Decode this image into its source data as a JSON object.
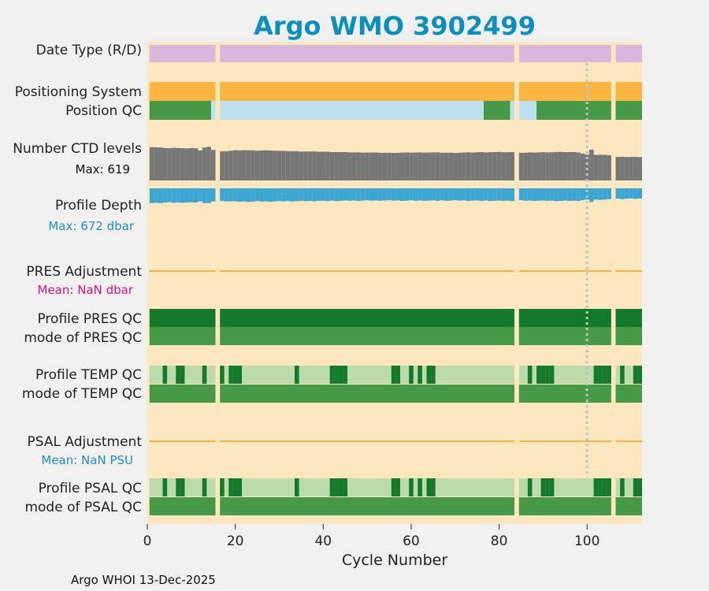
{
  "colors": {
    "figure_bg": "#f0f0f0",
    "axes_bg": "#fde7be",
    "title": "#0a8fbf",
    "date_type": "#d8b8dc",
    "positioning": "#fbb540",
    "pos_qc_good": "#469a46",
    "pos_qc_interp": "#bfe0ef",
    "ctd": "#777777",
    "depth": "#3aa6d4",
    "adjustment_line": "#f6b442",
    "qc_dark": "#137a2c",
    "qc_mid": "#469a46",
    "qc_light": "#bddbaa",
    "max_depth_text": "#1f90c0",
    "pres_mean_text": "#e0127f",
    "psal_mean_text": "#1f90c0",
    "vline": "#b8c4cc"
  },
  "chart_data": {
    "type": "timeline",
    "title": "Argo WMO 3902499",
    "xlabel": "Cycle Number",
    "xlim": [
      0,
      112.5
    ],
    "xticks": [
      0,
      20,
      40,
      60,
      80,
      100
    ],
    "gaps": [
      [
        15.5,
        16.5
      ],
      [
        83.5,
        84.5
      ],
      [
        105.5,
        106.5
      ]
    ],
    "vline_x": 100,
    "rows": {
      "date_type": "Date Type (R/D)",
      "positioning": "Positioning System",
      "position_qc": "Position QC",
      "ctd": "Number CTD levels",
      "ctd_max": "Max: 619",
      "depth": "Profile Depth",
      "depth_max": "Max:  672 dbar",
      "pres_adj": "PRES Adjustment",
      "pres_mean": "Mean:  NaN dbar",
      "pres_qc": "Profile PRES QC",
      "pres_mode": "mode of PRES QC",
      "temp_qc": "Profile TEMP QC",
      "temp_mode": "mode of TEMP QC",
      "psal_adj": "PSAL Adjustment",
      "psal_mean": "Mean:  NaN PSU",
      "psal_qc": "Profile PSAL QC",
      "psal_mode": "mode of PSAL QC"
    },
    "position_qc_segments": [
      {
        "x0": 0.5,
        "x1": 14.5,
        "class": "good"
      },
      {
        "x0": 14.5,
        "x1": 15.5,
        "class": "interp"
      },
      {
        "x0": 16.5,
        "x1": 76.5,
        "class": "interp"
      },
      {
        "x0": 76.5,
        "x1": 82.5,
        "class": "good"
      },
      {
        "x0": 82.5,
        "x1": 83.5,
        "class": "interp"
      },
      {
        "x0": 84.5,
        "x1": 88.5,
        "class": "interp"
      },
      {
        "x0": 88.5,
        "x1": 105.5,
        "class": "good"
      },
      {
        "x0": 106.5,
        "x1": 112.5,
        "class": "good"
      }
    ],
    "ctd_levels_anchors": [
      [
        1,
        610
      ],
      [
        3,
        600
      ],
      [
        5,
        590
      ],
      [
        7,
        595
      ],
      [
        9,
        585
      ],
      [
        11,
        590
      ],
      [
        12,
        550
      ],
      [
        13,
        600
      ],
      [
        14,
        619
      ],
      [
        15,
        560
      ],
      [
        17,
        530
      ],
      [
        20,
        550
      ],
      [
        22,
        555
      ],
      [
        25,
        545
      ],
      [
        28,
        550
      ],
      [
        30,
        540
      ],
      [
        35,
        530
      ],
      [
        40,
        525
      ],
      [
        45,
        515
      ],
      [
        50,
        510
      ],
      [
        55,
        505
      ],
      [
        60,
        510
      ],
      [
        65,
        512
      ],
      [
        70,
        505
      ],
      [
        75,
        515
      ],
      [
        80,
        518
      ],
      [
        83,
        515
      ],
      [
        85,
        505
      ],
      [
        90,
        515
      ],
      [
        95,
        520
      ],
      [
        98,
        515
      ],
      [
        100,
        470
      ],
      [
        101,
        560
      ],
      [
        102,
        470
      ],
      [
        105,
        465
      ],
      [
        107,
        430
      ],
      [
        112,
        430
      ]
    ],
    "profile_depth_max": 672,
    "temp_qc_dark_cycles": [
      4,
      7,
      8,
      13,
      17,
      19,
      20,
      21,
      34,
      42,
      43,
      44,
      45,
      56,
      57,
      60,
      62,
      64,
      65,
      87,
      89,
      90,
      91,
      92,
      102,
      103,
      104,
      105,
      108,
      111,
      112
    ],
    "psal_qc_dark_cycles": [
      4,
      7,
      8,
      13,
      17,
      19,
      20,
      21,
      34,
      42,
      43,
      44,
      45,
      56,
      57,
      60,
      62,
      64,
      65,
      87,
      90,
      91,
      92,
      102,
      103,
      104,
      105,
      108,
      111,
      112
    ]
  },
  "footer": "Argo WHOI 13-Dec-2025"
}
